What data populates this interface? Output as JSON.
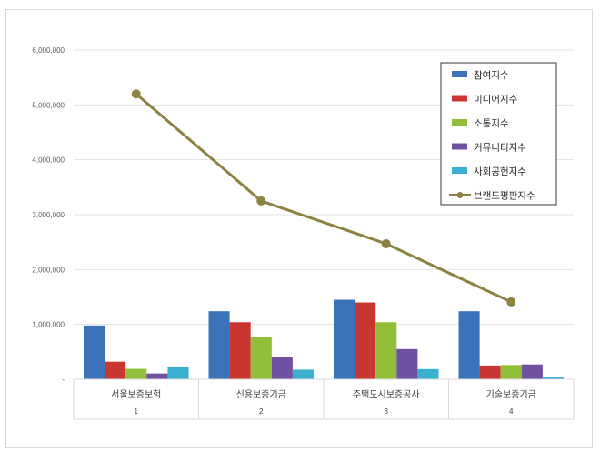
{
  "chart_data": {
    "type": "bar",
    "categories": [
      "서울보증보험",
      "신용보증기금",
      "주택도시보증공사",
      "기술보증기금"
    ],
    "category_index": [
      "1",
      "2",
      "3",
      "4"
    ],
    "ylim": [
      0,
      6000000
    ],
    "yticks": [
      0,
      1000000,
      2000000,
      3000000,
      4000000,
      5000000,
      6000000
    ],
    "ytick_labels": [
      "-",
      "1,000,000",
      "2,000,000",
      "3,000,000",
      "4,000,000",
      "5,000,000",
      "6,000,000"
    ],
    "grid": true,
    "legend_position": "top-right",
    "series": [
      {
        "name": "참여지수",
        "type": "bar",
        "color": "#3b72b8",
        "values": [
          980000,
          1240000,
          1450000,
          1240000
        ]
      },
      {
        "name": "미디어지수",
        "type": "bar",
        "color": "#c8362f",
        "values": [
          320000,
          1040000,
          1400000,
          250000
        ]
      },
      {
        "name": "소통지수",
        "type": "bar",
        "color": "#92be3a",
        "values": [
          190000,
          770000,
          1040000,
          260000
        ]
      },
      {
        "name": "커뮤니티지수",
        "type": "bar",
        "color": "#7050a0",
        "values": [
          105000,
          400000,
          550000,
          270000
        ]
      },
      {
        "name": "사회공헌지수",
        "type": "bar",
        "color": "#3ab0cf",
        "values": [
          220000,
          175000,
          185000,
          45000
        ]
      },
      {
        "name": "브랜드평판지수",
        "type": "line",
        "color": "#8c8243",
        "values": [
          5200000,
          3250000,
          2470000,
          1410000
        ]
      }
    ]
  }
}
